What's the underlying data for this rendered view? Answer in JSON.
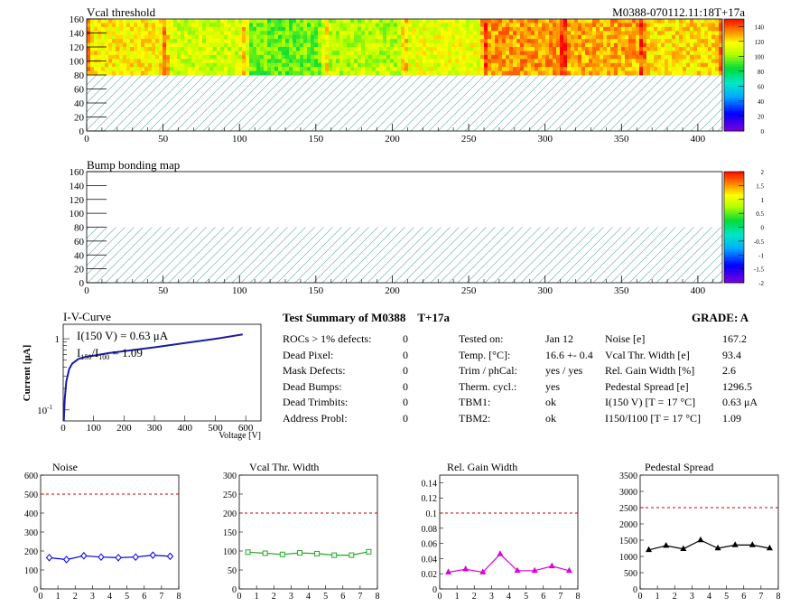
{
  "header_id": "M0388-070112.11:18T+17a",
  "vcal_map": {
    "title": "Vcal threshold",
    "x_ticks": [
      0,
      50,
      100,
      150,
      200,
      250,
      300,
      350,
      400
    ],
    "y_ticks": [
      0,
      20,
      40,
      60,
      80,
      100,
      120,
      140,
      160
    ],
    "palette_ticks": [
      0,
      20,
      40,
      60,
      80,
      100,
      120,
      140
    ]
  },
  "bump_map": {
    "title": "Bump bonding map",
    "x_ticks": [
      0,
      50,
      100,
      150,
      200,
      250,
      300,
      350,
      400
    ],
    "y_ticks": [
      0,
      20,
      40,
      60,
      80,
      100,
      120,
      140,
      160
    ],
    "palette_ticks": [
      "-2",
      "-1.5",
      "-1",
      "-0.5",
      "0",
      "0.5",
      "1",
      "1.5",
      "2"
    ]
  },
  "iv": {
    "title": "I-V-Curve",
    "xlabel": "Voltage [V]",
    "ylabel": "Current [μA]",
    "annotation1": "I(150 V) = 0.63 μA",
    "annotation2_a": "I",
    "annotation2_b": "150",
    "annotation2_c": "/I",
    "annotation2_d": "100",
    "annotation2_e": " =  1.09",
    "x_ticks": [
      "0",
      "100",
      "200",
      "300",
      "400",
      "500",
      "600"
    ],
    "y_tick_top": "1",
    "y_tick_bottom_base": "10",
    "y_tick_bottom_exp": "-1"
  },
  "summary": {
    "title": "Test Summary of M0388",
    "temp_tag": "T+17a",
    "grade": "GRADE:  A",
    "defects": [
      {
        "label": "ROCs > 1% defects:",
        "value": "0"
      },
      {
        "label": "Dead Pixel:",
        "value": "0"
      },
      {
        "label": "Mask Defects:",
        "value": "0"
      },
      {
        "label": "Dead Bumps:",
        "value": "0"
      },
      {
        "label": "Dead Trimbits:",
        "value": "0"
      },
      {
        "label": "Address Probl:",
        "value": "0"
      }
    ],
    "conditions": [
      {
        "label": "Tested on:",
        "value": "Jan 12"
      },
      {
        "label": "Temp. [°C]:",
        "value": "16.6 +- 0.4"
      },
      {
        "label": "Trim / phCal:",
        "value": "yes / yes"
      },
      {
        "label": "Therm. cycl.:",
        "value": "yes"
      },
      {
        "label": "TBM1:",
        "value": "ok"
      },
      {
        "label": "TBM2:",
        "value": "ok"
      }
    ],
    "results": [
      {
        "label": "Noise [e]",
        "value": "167.2"
      },
      {
        "label": "Vcal Thr. Width [e]",
        "value": "93.4"
      },
      {
        "label": "Rel. Gain Width [%]",
        "value": "2.6"
      },
      {
        "label": "Pedestal Spread [e]",
        "value": "1296.5"
      },
      {
        "label": "I(150 V) [T = 17 °C]",
        "value": "0.63 μA"
      },
      {
        "label": "I150/I100   [T = 17 °C]",
        "value": "1.09"
      }
    ]
  },
  "chart_data": [
    {
      "type": "heatmap",
      "title": "Vcal threshold",
      "xlim": [
        0,
        416
      ],
      "ylim": [
        0,
        160
      ],
      "zlim": [
        0,
        150
      ],
      "filled_rows": [
        80,
        160
      ],
      "roc_columns": 8,
      "roc_level": [
        118,
        108,
        95,
        104,
        112,
        130,
        128,
        120
      ],
      "grid": false
    },
    {
      "type": "heatmap",
      "title": "Bump bonding map",
      "xlim": [
        0,
        416
      ],
      "ylim": [
        0,
        160
      ],
      "zlim": [
        -2,
        2
      ],
      "filled_rows": [
        80,
        160
      ],
      "dead_bumps": 0,
      "grid": false
    },
    {
      "type": "line",
      "title": "I-V-Curve",
      "xlabel": "Voltage [V]",
      "ylabel": "Current [μA]",
      "log_y": true,
      "xlim": [
        0,
        650
      ],
      "ylim": [
        0.07,
        1.6
      ],
      "x": [
        2,
        5,
        10,
        20,
        30,
        50,
        75,
        100,
        150,
        200,
        300,
        400,
        500,
        590
      ],
      "y": [
        0.07,
        0.14,
        0.25,
        0.38,
        0.45,
        0.52,
        0.56,
        0.58,
        0.63,
        0.67,
        0.76,
        0.87,
        1.0,
        1.15
      ]
    },
    {
      "type": "line",
      "title": "Noise",
      "x": [
        0.5,
        1.5,
        2.5,
        3.5,
        4.5,
        5.5,
        6.5,
        7.5
      ],
      "series": [
        {
          "values": [
            165,
            155,
            175,
            168,
            165,
            168,
            178,
            172
          ]
        }
      ],
      "xlim": [
        0,
        8
      ],
      "ylim": [
        0,
        600
      ],
      "x_ticks": [
        0,
        1,
        2,
        3,
        4,
        5,
        6,
        7,
        8
      ],
      "y_ticks": [
        0,
        100,
        200,
        300,
        400,
        500,
        600
      ],
      "limit": 500,
      "color": "#0000dd",
      "marker": "diamond-open"
    },
    {
      "type": "line",
      "title": "Vcal Thr. Width",
      "x": [
        0.5,
        1.5,
        2.5,
        3.5,
        4.5,
        5.5,
        6.5,
        7.5
      ],
      "series": [
        {
          "values": [
            97,
            94,
            91,
            95,
            93,
            89,
            89,
            98
          ]
        }
      ],
      "xlim": [
        0,
        8
      ],
      "ylim": [
        0,
        300
      ],
      "x_ticks": [
        0,
        1,
        2,
        3,
        4,
        5,
        6,
        7,
        8
      ],
      "y_ticks": [
        0,
        50,
        100,
        150,
        200,
        250,
        300
      ],
      "limit": 200,
      "color": "#22aa22",
      "marker": "square-open"
    },
    {
      "type": "line",
      "title": "Rel. Gain Width",
      "x": [
        0.5,
        1.5,
        2.5,
        3.5,
        4.5,
        5.5,
        6.5,
        7.5
      ],
      "series": [
        {
          "values": [
            0.022,
            0.026,
            0.022,
            0.046,
            0.024,
            0.024,
            0.03,
            0.024
          ]
        }
      ],
      "xlim": [
        0,
        8
      ],
      "ylim": [
        0,
        0.15
      ],
      "x_ticks": [
        0,
        1,
        2,
        3,
        4,
        5,
        6,
        7,
        8
      ],
      "y_ticks": [
        0,
        0.02,
        0.04,
        0.06,
        0.08,
        0.1,
        0.12,
        0.14
      ],
      "limit": 0.1,
      "color": "#dd00dd",
      "marker": "triangle"
    },
    {
      "type": "line",
      "title": "Pedestal Spread",
      "x": [
        0.5,
        1.5,
        2.5,
        3.5,
        4.5,
        5.5,
        6.5,
        7.5
      ],
      "series": [
        {
          "values": [
            1200,
            1330,
            1230,
            1500,
            1250,
            1350,
            1350,
            1250
          ]
        }
      ],
      "xlim": [
        0,
        8
      ],
      "ylim": [
        0,
        3500
      ],
      "x_ticks": [
        0,
        1,
        2,
        3,
        4,
        5,
        6,
        7,
        8
      ],
      "y_ticks": [
        0,
        500,
        1000,
        1500,
        2000,
        2500,
        3000,
        3500
      ],
      "limit": 2500,
      "color": "#000000",
      "marker": "triangle"
    }
  ]
}
